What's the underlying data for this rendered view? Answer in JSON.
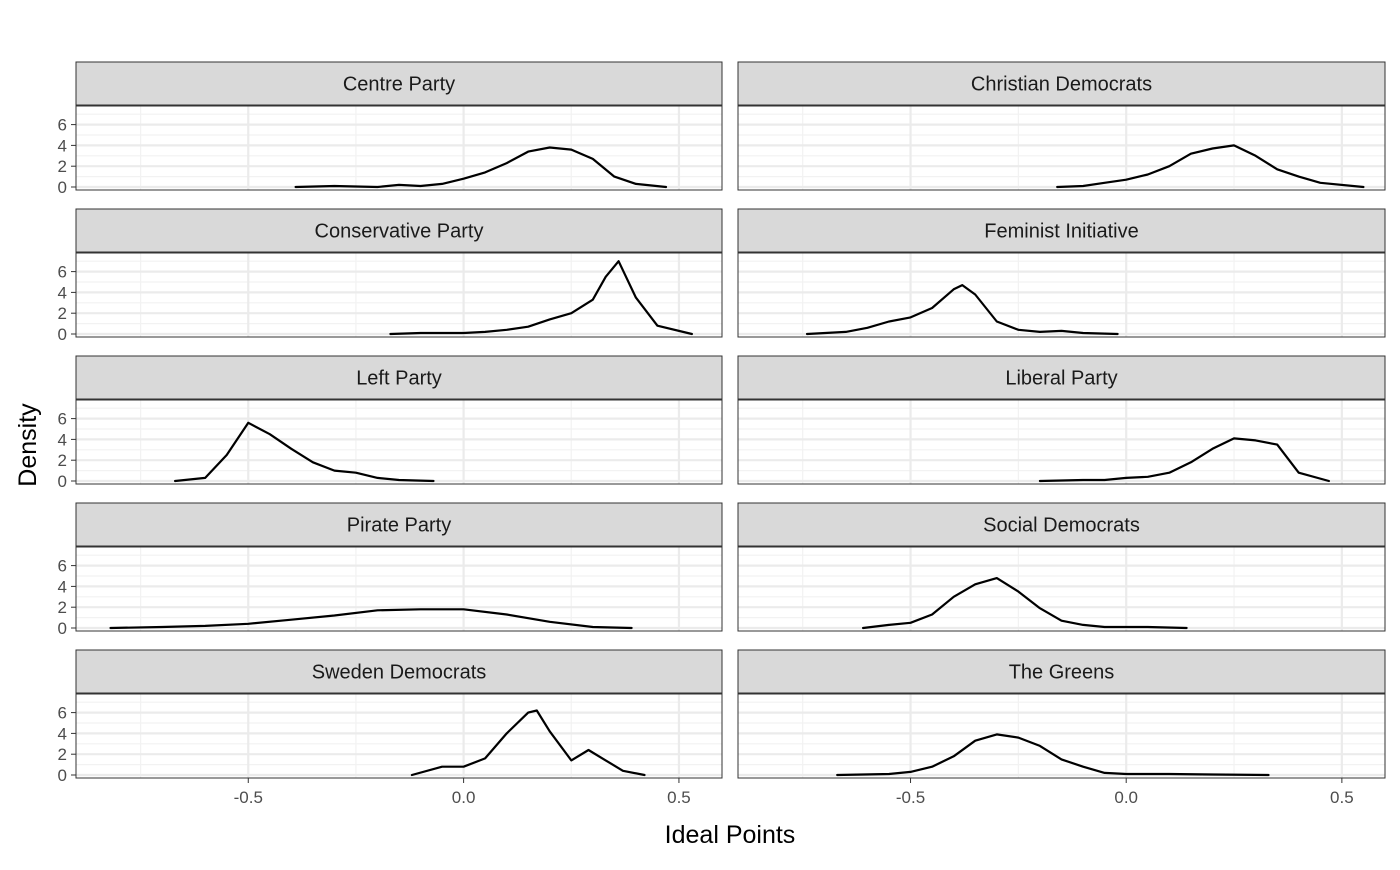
{
  "chart_data": {
    "type": "area",
    "xlabel": "Ideal Points",
    "ylabel": "Density",
    "xlim": [
      -0.9,
      0.6
    ],
    "ylim": [
      0,
      7.5
    ],
    "x_ticks": [
      -0.5,
      0.0,
      0.5
    ],
    "x_tick_labels": [
      "-0.5",
      "0.0",
      "0.5"
    ],
    "y_ticks": [
      0,
      2,
      4,
      6
    ],
    "y_tick_labels": [
      "0",
      "2",
      "4",
      "6"
    ],
    "grid": true,
    "facets": [
      {
        "name": "Centre Party",
        "x": [
          -0.39,
          -0.3,
          -0.2,
          -0.15,
          -0.1,
          -0.05,
          0.0,
          0.05,
          0.1,
          0.15,
          0.2,
          0.25,
          0.3,
          0.35,
          0.4,
          0.47
        ],
        "y": [
          0,
          0.1,
          0,
          0.2,
          0.1,
          0.3,
          0.8,
          1.4,
          2.3,
          3.4,
          3.8,
          3.6,
          2.7,
          1.0,
          0.3,
          0
        ]
      },
      {
        "name": "Christian Democrats",
        "x": [
          -0.16,
          -0.1,
          -0.05,
          0.0,
          0.05,
          0.1,
          0.15,
          0.2,
          0.25,
          0.3,
          0.35,
          0.4,
          0.45,
          0.55
        ],
        "y": [
          0,
          0.1,
          0.4,
          0.7,
          1.2,
          2.0,
          3.2,
          3.7,
          4.0,
          3.0,
          1.7,
          1.0,
          0.4,
          0
        ]
      },
      {
        "name": "Conservative Party",
        "x": [
          -0.17,
          -0.1,
          -0.05,
          0.0,
          0.05,
          0.1,
          0.15,
          0.2,
          0.25,
          0.3,
          0.33,
          0.36,
          0.4,
          0.45,
          0.53
        ],
        "y": [
          0,
          0.1,
          0.1,
          0.1,
          0.2,
          0.4,
          0.7,
          1.4,
          2.0,
          3.3,
          5.5,
          7.0,
          3.5,
          0.8,
          0
        ]
      },
      {
        "name": "Feminist Initiative",
        "x": [
          -0.74,
          -0.65,
          -0.6,
          -0.55,
          -0.5,
          -0.45,
          -0.4,
          -0.38,
          -0.35,
          -0.3,
          -0.25,
          -0.2,
          -0.15,
          -0.1,
          -0.02
        ],
        "y": [
          0,
          0.2,
          0.6,
          1.2,
          1.6,
          2.5,
          4.3,
          4.7,
          3.8,
          1.2,
          0.4,
          0.2,
          0.3,
          0.1,
          0
        ]
      },
      {
        "name": "Left Party",
        "x": [
          -0.67,
          -0.6,
          -0.55,
          -0.5,
          -0.45,
          -0.4,
          -0.35,
          -0.3,
          -0.25,
          -0.2,
          -0.15,
          -0.07
        ],
        "y": [
          0,
          0.3,
          2.5,
          5.6,
          4.5,
          3.1,
          1.8,
          1.0,
          0.8,
          0.3,
          0.1,
          0
        ]
      },
      {
        "name": "Liberal Party",
        "x": [
          -0.2,
          -0.1,
          -0.05,
          0.0,
          0.05,
          0.1,
          0.15,
          0.2,
          0.25,
          0.3,
          0.35,
          0.4,
          0.47
        ],
        "y": [
          0,
          0.1,
          0.1,
          0.3,
          0.4,
          0.8,
          1.8,
          3.1,
          4.1,
          3.9,
          3.5,
          0.8,
          0
        ]
      },
      {
        "name": "Pirate Party",
        "x": [
          -0.82,
          -0.7,
          -0.6,
          -0.5,
          -0.4,
          -0.3,
          -0.2,
          -0.1,
          0.0,
          0.1,
          0.2,
          0.3,
          0.39
        ],
        "y": [
          0,
          0.1,
          0.2,
          0.4,
          0.8,
          1.2,
          1.7,
          1.8,
          1.8,
          1.3,
          0.6,
          0.1,
          0
        ]
      },
      {
        "name": "Social Democrats",
        "x": [
          -0.61,
          -0.55,
          -0.5,
          -0.45,
          -0.4,
          -0.35,
          -0.3,
          -0.25,
          -0.2,
          -0.15,
          -0.1,
          -0.05,
          0.0,
          0.05,
          0.14
        ],
        "y": [
          0,
          0.3,
          0.5,
          1.3,
          3.0,
          4.2,
          4.8,
          3.5,
          1.9,
          0.7,
          0.3,
          0.1,
          0.1,
          0.1,
          0
        ]
      },
      {
        "name": "Sweden Democrats",
        "x": [
          -0.12,
          -0.05,
          0.0,
          0.05,
          0.1,
          0.15,
          0.17,
          0.2,
          0.25,
          0.29,
          0.33,
          0.37,
          0.42
        ],
        "y": [
          0,
          0.8,
          0.8,
          1.6,
          4.0,
          6.0,
          6.2,
          4.2,
          1.4,
          2.4,
          1.4,
          0.4,
          0
        ]
      },
      {
        "name": "The Greens",
        "x": [
          -0.67,
          -0.55,
          -0.5,
          -0.45,
          -0.4,
          -0.35,
          -0.3,
          -0.25,
          -0.2,
          -0.15,
          -0.1,
          -0.05,
          0.0,
          0.1,
          0.2,
          0.33
        ],
        "y": [
          0,
          0.1,
          0.3,
          0.8,
          1.8,
          3.3,
          3.9,
          3.6,
          2.8,
          1.5,
          0.8,
          0.2,
          0.1,
          0.1,
          0.05,
          0
        ]
      }
    ]
  }
}
